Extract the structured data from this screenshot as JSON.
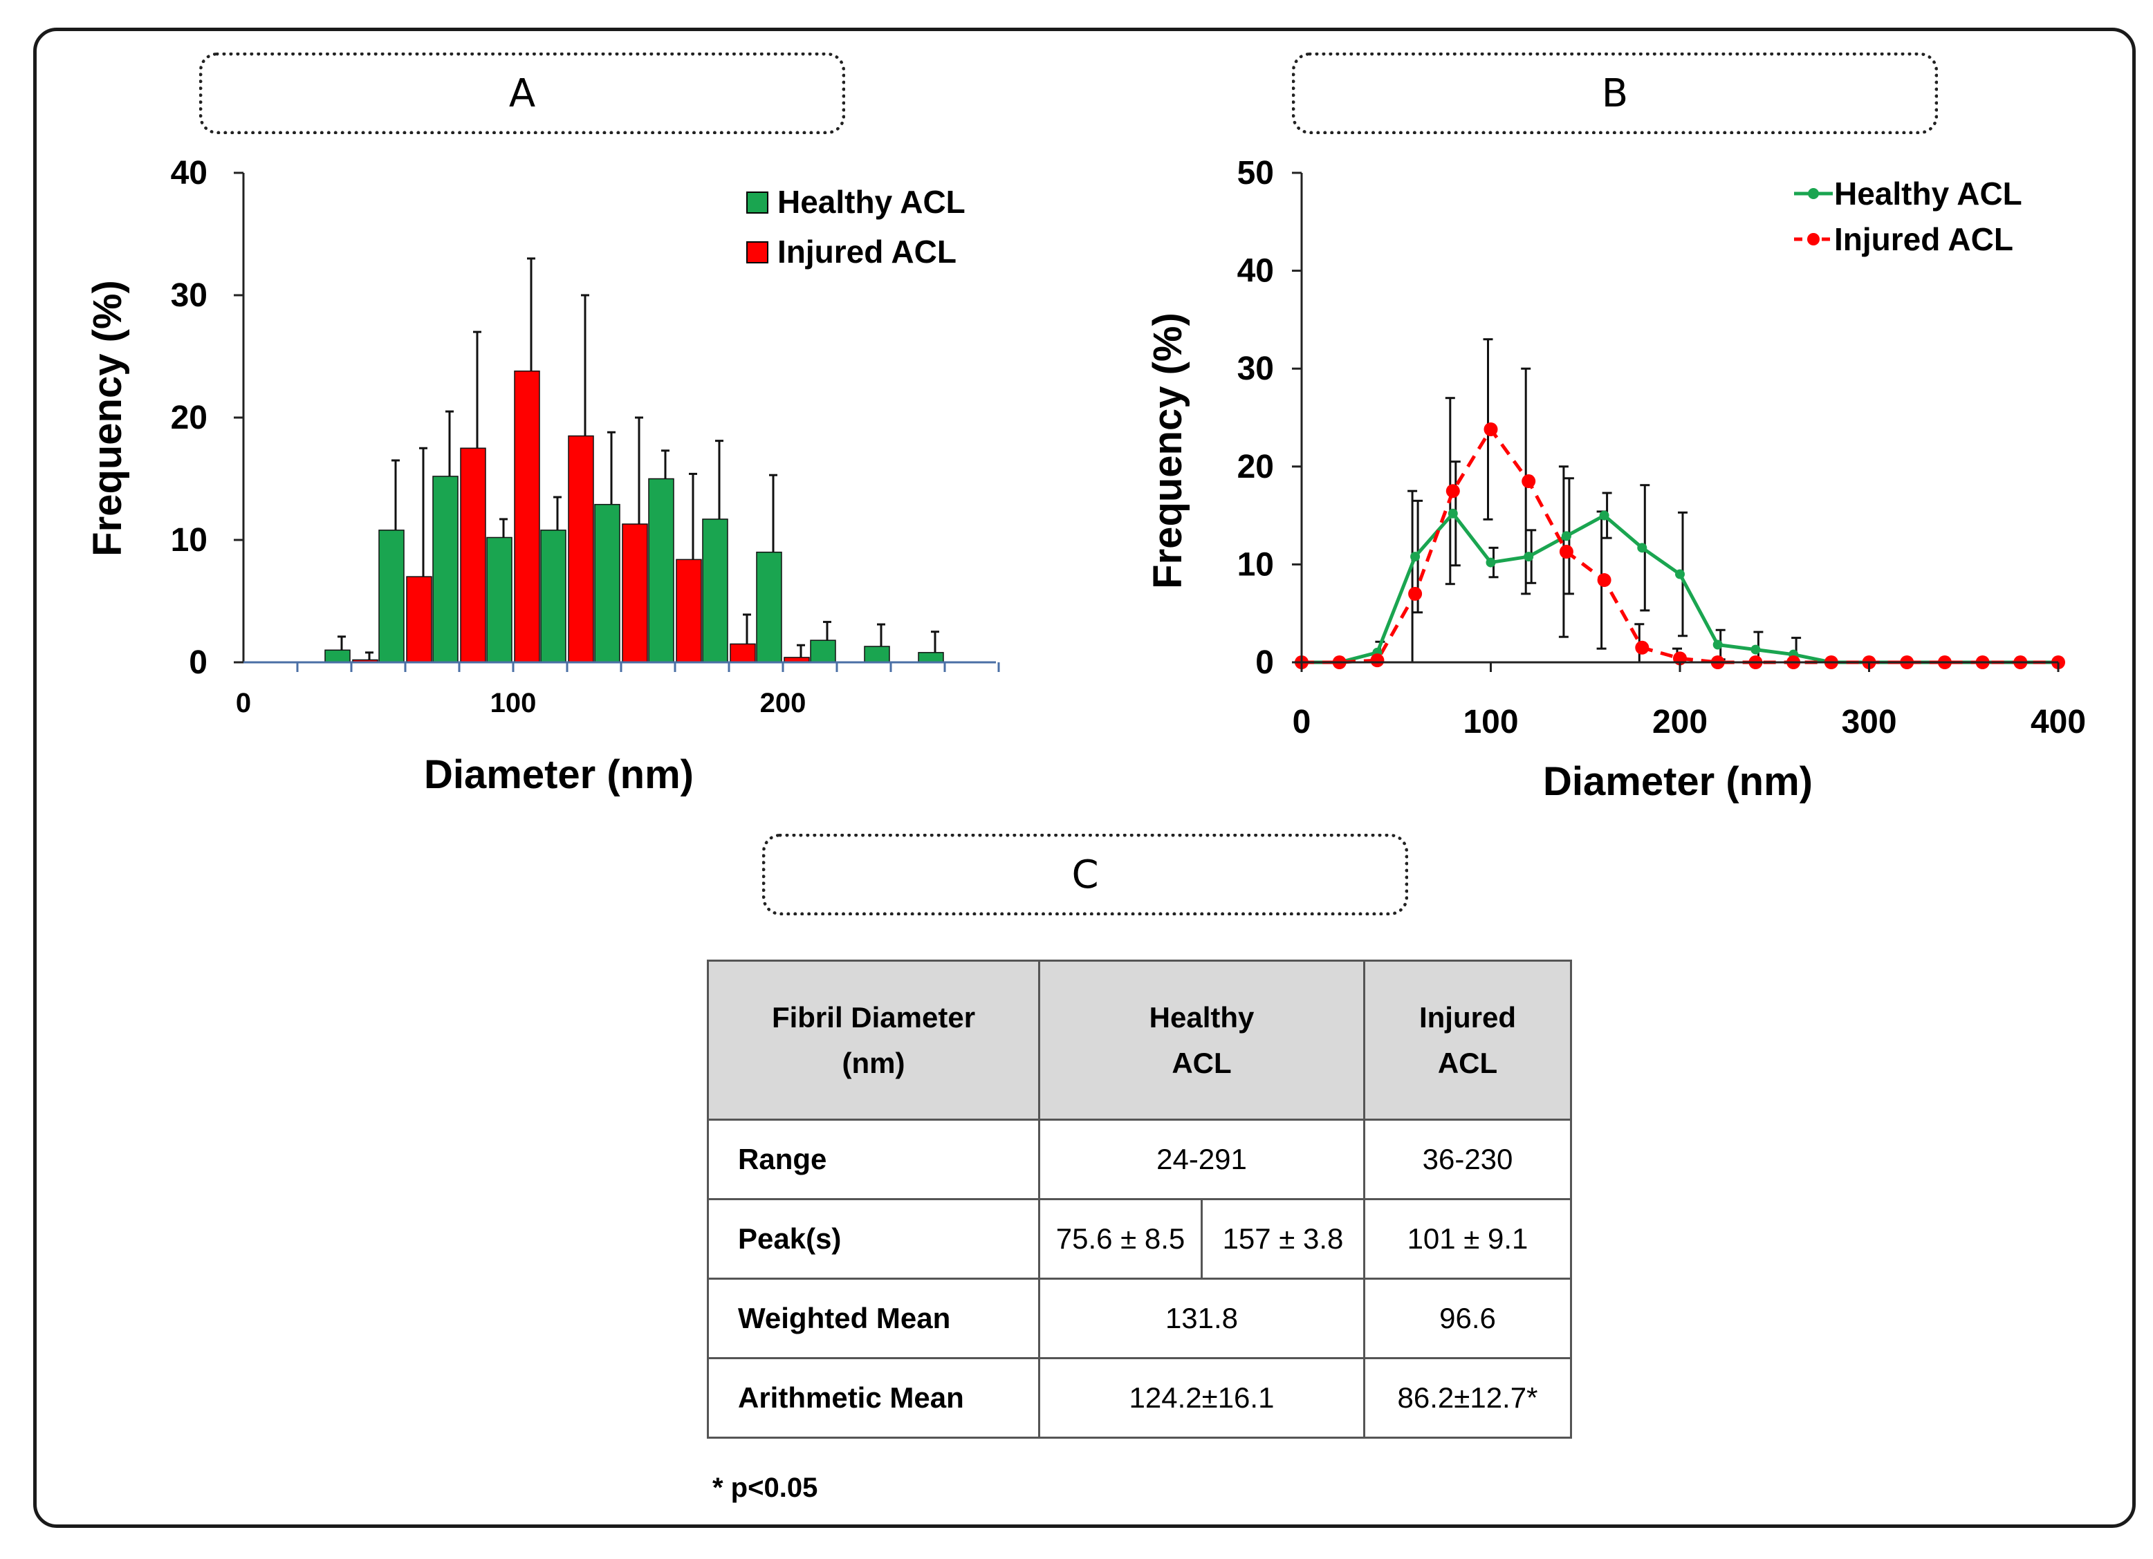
{
  "panels": {
    "a": "A",
    "b": "B",
    "c": "C"
  },
  "colors": {
    "healthy": "#1aa550",
    "injured": "#ff0000",
    "axis": "#4a6fa5"
  },
  "chart_data": [
    {
      "id": "A",
      "type": "bar",
      "xlabel": "Diameter (nm)",
      "ylabel": "Frequency (%)",
      "ylim": [
        0,
        40
      ],
      "yticks": [
        0,
        10,
        20,
        30,
        40
      ],
      "xticks": [
        0,
        100,
        200
      ],
      "legend": "top-right",
      "categories": [
        40,
        60,
        80,
        100,
        120,
        140,
        160,
        180,
        200,
        220,
        240,
        260
      ],
      "series": [
        {
          "name": "Healthy ACL",
          "values": [
            1.0,
            10.8,
            15.2,
            10.2,
            10.8,
            12.9,
            15.0,
            11.7,
            9.0,
            1.8,
            1.3,
            0.8
          ],
          "errors": [
            1.1,
            5.7,
            5.3,
            1.5,
            2.7,
            5.9,
            2.3,
            6.4,
            6.3,
            1.5,
            1.8,
            1.7
          ]
        },
        {
          "name": "Injured ACL",
          "values": [
            0.2,
            7.0,
            17.5,
            23.8,
            18.5,
            11.3,
            8.4,
            1.5,
            0.4,
            0,
            0,
            0
          ],
          "errors": [
            0.6,
            10.5,
            9.5,
            9.2,
            11.5,
            8.7,
            7.0,
            2.4,
            1.0,
            0,
            0,
            0
          ]
        }
      ]
    },
    {
      "id": "B",
      "type": "line",
      "xlabel": "Diameter (nm)",
      "ylabel": "Frequency (%)",
      "xlim": [
        0,
        400
      ],
      "ylim": [
        0,
        50
      ],
      "xticks": [
        0,
        100,
        200,
        300,
        400
      ],
      "yticks": [
        0,
        10,
        20,
        30,
        40,
        50
      ],
      "legend": "top-right",
      "x": [
        0,
        20,
        40,
        60,
        80,
        100,
        120,
        140,
        160,
        180,
        200,
        220,
        240,
        260,
        280,
        300,
        320,
        340,
        360,
        380,
        400
      ],
      "series": [
        {
          "name": "Healthy ACL",
          "style": "solid",
          "values": [
            0,
            0,
            1.0,
            10.8,
            15.2,
            10.2,
            10.8,
            12.9,
            15.0,
            11.7,
            9.0,
            1.8,
            1.3,
            0.8,
            0,
            0,
            0,
            0,
            0,
            0,
            0
          ],
          "errors": [
            0,
            0,
            1.1,
            5.7,
            5.3,
            1.5,
            2.7,
            5.9,
            2.3,
            6.4,
            6.3,
            1.5,
            1.8,
            1.7,
            0,
            0,
            0,
            0,
            0,
            0,
            0
          ]
        },
        {
          "name": "Injured ACL",
          "style": "dashed",
          "values": [
            0,
            0,
            0.2,
            7.0,
            17.5,
            23.8,
            18.5,
            11.3,
            8.4,
            1.5,
            0.4,
            0,
            0,
            0,
            0,
            0,
            0,
            0,
            0,
            0,
            0
          ],
          "errors": [
            0,
            0,
            0.6,
            10.5,
            9.5,
            9.2,
            11.5,
            8.7,
            7.0,
            2.4,
            1.0,
            0,
            0,
            0,
            0,
            0,
            0,
            0,
            0,
            0,
            0
          ]
        }
      ]
    },
    {
      "id": "C",
      "type": "table",
      "header": {
        "col1": "Fibril Diameter (nm)",
        "col2": "Healthy ACL",
        "col3": "Injured ACL"
      },
      "rows": {
        "range": {
          "label": "Range",
          "healthy": "24-291",
          "injured": "36-230"
        },
        "peaks": {
          "label": "Peak(s)",
          "healthy_a": "75.6 ± 8.5",
          "healthy_b": "157 ± 3.8",
          "injured": "101 ± 9.1"
        },
        "weighted": {
          "label": "Weighted Mean",
          "healthy": "131.8",
          "injured": "96.6"
        },
        "arithmetic": {
          "label": "Arithmetic Mean",
          "healthy": "124.2±16.1",
          "injured": "86.2±12.7*"
        }
      },
      "footnote": "* p<0.05"
    }
  ]
}
